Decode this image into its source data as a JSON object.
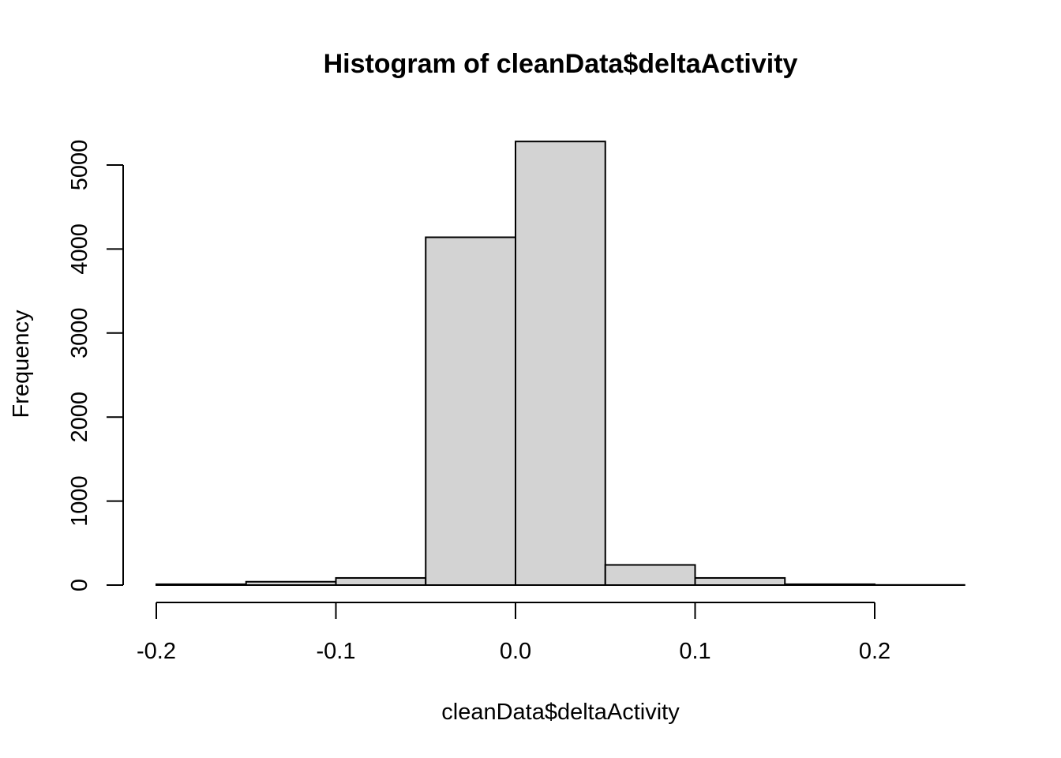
{
  "chart_data": {
    "type": "bar",
    "title": "Histogram of cleanData$deltaActivity",
    "xlabel": "cleanData$deltaActivity",
    "ylabel": "Frequency",
    "bins": [
      {
        "from": -0.2,
        "to": -0.15,
        "count": 10
      },
      {
        "from": -0.15,
        "to": -0.1,
        "count": 40
      },
      {
        "from": -0.1,
        "to": -0.05,
        "count": 85
      },
      {
        "from": -0.05,
        "to": 0.0,
        "count": 4140
      },
      {
        "from": 0.0,
        "to": 0.05,
        "count": 5280
      },
      {
        "from": 0.05,
        "to": 0.1,
        "count": 240
      },
      {
        "from": 0.1,
        "to": 0.15,
        "count": 85
      },
      {
        "from": 0.15,
        "to": 0.2,
        "count": 10
      },
      {
        "from": 0.2,
        "to": 0.25,
        "count": 2
      }
    ],
    "xlim": [
      -0.2,
      0.25
    ],
    "ylim": [
      0,
      5000
    ],
    "x_ticks": [
      {
        "value": -0.2,
        "label": "-0.2"
      },
      {
        "value": -0.1,
        "label": "-0.1"
      },
      {
        "value": 0.0,
        "label": "0.0"
      },
      {
        "value": 0.1,
        "label": "0.1"
      },
      {
        "value": 0.2,
        "label": "0.2"
      }
    ],
    "y_ticks": [
      {
        "value": 0,
        "label": "0"
      },
      {
        "value": 1000,
        "label": "1000"
      },
      {
        "value": 2000,
        "label": "2000"
      },
      {
        "value": 3000,
        "label": "3000"
      },
      {
        "value": 4000,
        "label": "4000"
      },
      {
        "value": 5000,
        "label": "5000"
      }
    ],
    "bar_color": "#d3d3d3",
    "grid": false
  }
}
